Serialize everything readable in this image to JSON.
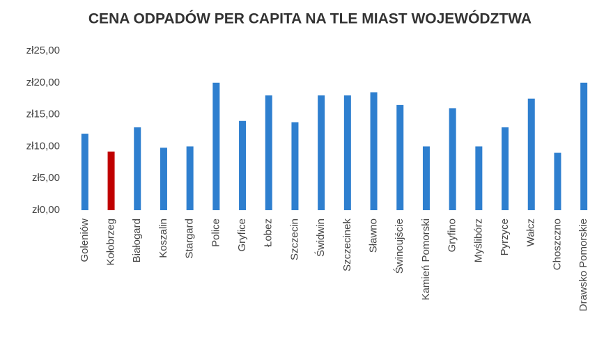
{
  "chart_data": {
    "type": "bar",
    "title": "CENA ODPADÓW PER CAPITA NA TLE MIAST WOJEWÓDZTWA",
    "categories": [
      "Goleniów",
      "Kołobrzeg",
      "Białogard",
      "Koszalin",
      "Stargard",
      "Police",
      "Gryfice",
      "Łobez",
      "Szczecin",
      "Świdwin",
      "Szczecinek",
      "Sławno",
      "Świnoujście",
      "Kamień Pomorski",
      "Gryfino",
      "Myślibórz",
      "Pyrzyce",
      "Wałcz",
      "Choszczno",
      "Drawsko Pomorskie"
    ],
    "values": [
      12,
      9.2,
      13,
      9.8,
      10,
      20,
      14,
      18,
      13.8,
      18,
      18,
      18.5,
      16.5,
      10,
      16,
      10,
      13,
      17.5,
      9,
      20
    ],
    "colors": [
      "#2e7fcf",
      "#c00000",
      "#2e7fcf",
      "#2e7fcf",
      "#2e7fcf",
      "#2e7fcf",
      "#2e7fcf",
      "#2e7fcf",
      "#2e7fcf",
      "#2e7fcf",
      "#2e7fcf",
      "#2e7fcf",
      "#2e7fcf",
      "#2e7fcf",
      "#2e7fcf",
      "#2e7fcf",
      "#2e7fcf",
      "#2e7fcf",
      "#2e7fcf",
      "#2e7fcf"
    ],
    "ylim": [
      0,
      25
    ],
    "yticks": [
      {
        "value": 0,
        "label": "zł0,00"
      },
      {
        "value": 5,
        "label": "zł5,00"
      },
      {
        "value": 10,
        "label": "zł10,00"
      },
      {
        "value": 15,
        "label": "zł15,00"
      },
      {
        "value": 20,
        "label": "zł20,00"
      },
      {
        "value": 25,
        "label": "zł25,00"
      }
    ]
  }
}
